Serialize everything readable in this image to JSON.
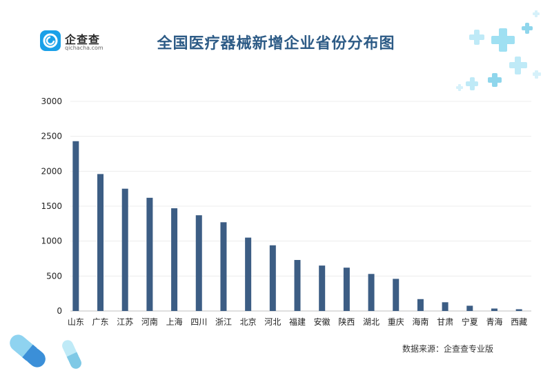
{
  "logo": {
    "name": "企查查",
    "domain": "qichacha.com"
  },
  "source_note": "数据来源：企查查专业版",
  "chart_data": {
    "type": "bar",
    "title": "全国医疗器械新增企业省份分布图",
    "xlabel": "",
    "ylabel": "",
    "ylim": [
      0,
      3000
    ],
    "yticks": [
      0,
      500,
      1000,
      1500,
      2000,
      2500,
      3000
    ],
    "grid": true,
    "bar_color": "#3c5d84",
    "categories": [
      "山东",
      "广东",
      "江苏",
      "河南",
      "上海",
      "四川",
      "浙江",
      "北京",
      "河北",
      "福建",
      "安徽",
      "陕西",
      "湖北",
      "重庆",
      "海南",
      "甘肃",
      "宁夏",
      "青海",
      "西藏"
    ],
    "values": [
      2430,
      1960,
      1750,
      1620,
      1470,
      1370,
      1270,
      1050,
      940,
      730,
      650,
      620,
      530,
      460,
      170,
      125,
      75,
      35,
      25
    ]
  }
}
